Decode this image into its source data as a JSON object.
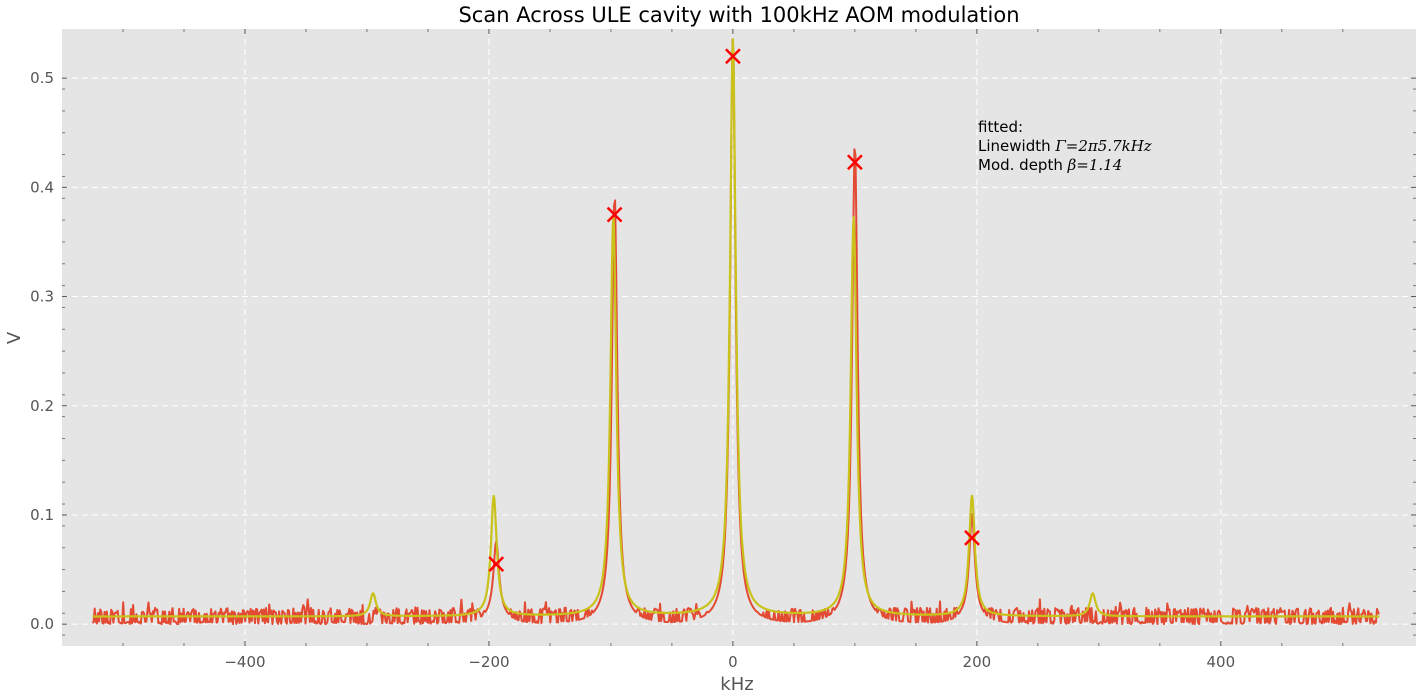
{
  "chart_data": {
    "type": "line",
    "title": "Scan Across ULE cavity with 100kHz AOM modulation",
    "xlabel": "kHz",
    "ylabel": "V",
    "xlim": [
      -550,
      560
    ],
    "ylim": [
      -0.02,
      0.545
    ],
    "x_ticks": [
      -400,
      -200,
      0,
      200,
      400
    ],
    "x_tick_labels": [
      "−400",
      "−200",
      "0",
      "200",
      "400"
    ],
    "y_ticks": [
      0.0,
      0.1,
      0.2,
      0.3,
      0.4,
      0.5
    ],
    "y_tick_labels": [
      "0.0",
      "0.1",
      "0.2",
      "0.3",
      "0.4",
      "0.5"
    ],
    "grid": true,
    "background": "#e5e5e5",
    "series": [
      {
        "kind": "measured",
        "color": "#e24a33",
        "x_range": [
          -525,
          530
        ],
        "noise_baseline": [
          0.0,
          0.015
        ],
        "peaks": [
          {
            "x": -194,
            "y": 0.055
          },
          {
            "x": -97,
            "y": 0.375
          },
          {
            "x": 0,
            "y": 0.52
          },
          {
            "x": 100,
            "y": 0.423
          },
          {
            "x": 196,
            "y": 0.079
          }
        ]
      },
      {
        "kind": "fit",
        "color": "#c8c21a",
        "x_range": [
          -525,
          530
        ],
        "baseline": 0.007,
        "peaks": [
          {
            "x": -295,
            "y": 0.028
          },
          {
            "x": -196,
            "y": 0.117
          },
          {
            "x": -98,
            "y": 0.372
          },
          {
            "x": 0,
            "y": 0.535
          },
          {
            "x": 99,
            "y": 0.372
          },
          {
            "x": 196,
            "y": 0.117
          },
          {
            "x": 295,
            "y": 0.028
          }
        ]
      }
    ],
    "markers": [
      {
        "x": -194,
        "y": 0.055
      },
      {
        "x": -97,
        "y": 0.375
      },
      {
        "x": 0,
        "y": 0.52
      },
      {
        "x": 100,
        "y": 0.423
      },
      {
        "x": 196,
        "y": 0.079
      }
    ],
    "marker_color": "#ff0000",
    "annotation": {
      "line1": "fitted:",
      "line2_prefix": "Linewidth ",
      "line2_math": "Γ=2π5.7kHz",
      "line3_prefix": "Mod. depth ",
      "line3_math": "β=1.14"
    }
  }
}
